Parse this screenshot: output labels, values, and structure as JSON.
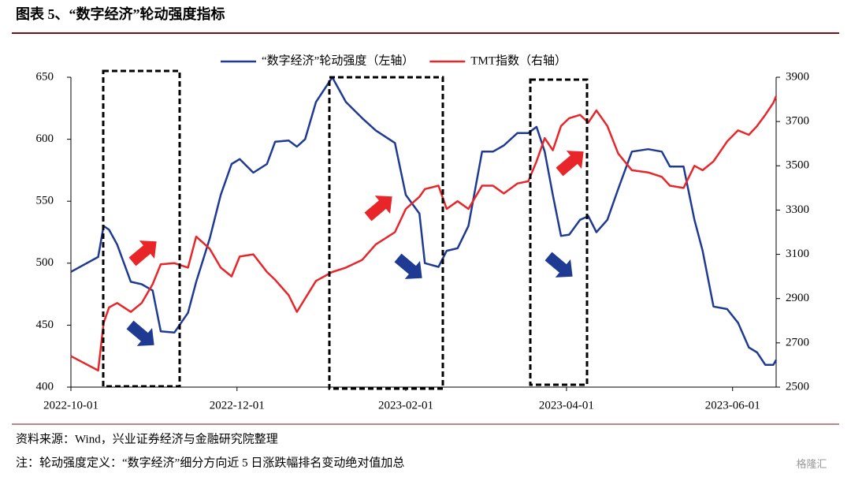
{
  "header": {
    "title": "图表 5、“数字经济”轮动强度指标"
  },
  "chart_data": {
    "type": "line",
    "x": [
      "2022-10-01",
      "2022-10-11",
      "2022-10-13",
      "2022-10-15",
      "2022-10-18",
      "2022-10-23",
      "2022-10-27",
      "2022-10-31",
      "2022-11-03",
      "2022-11-08",
      "2022-11-13",
      "2022-11-16",
      "2022-11-21",
      "2022-11-25",
      "2022-11-29",
      "2022-12-02",
      "2022-12-07",
      "2022-12-12",
      "2022-12-15",
      "2022-12-20",
      "2022-12-23",
      "2022-12-26",
      "2022-12-30",
      "2023-01-05",
      "2023-01-10",
      "2023-01-16",
      "2023-01-21",
      "2023-01-28",
      "2023-02-01",
      "2023-02-06",
      "2023-02-08",
      "2023-02-13",
      "2023-02-16",
      "2023-02-20",
      "2023-02-24",
      "2023-03-01",
      "2023-03-05",
      "2023-03-09",
      "2023-03-14",
      "2023-03-18",
      "2023-03-21",
      "2023-03-24",
      "2023-03-27",
      "2023-03-30",
      "2023-04-02",
      "2023-04-06",
      "2023-04-09",
      "2023-04-12",
      "2023-04-16",
      "2023-04-20",
      "2023-04-25",
      "2023-05-01",
      "2023-05-06",
      "2023-05-09",
      "2023-05-14",
      "2023-05-18",
      "2023-05-21",
      "2023-05-25",
      "2023-05-30",
      "2023-06-03",
      "2023-06-07",
      "2023-06-10",
      "2023-06-13",
      "2023-06-16",
      "2023-06-17"
    ],
    "series": [
      {
        "name": "“数字经济”轮动强度（左轴）",
        "color": "#1f3a93",
        "values": [
          493,
          505,
          530,
          527,
          515,
          485,
          483,
          478,
          445,
          444,
          460,
          485,
          520,
          555,
          580,
          584,
          573,
          580,
          598,
          599,
          594,
          600,
          630,
          650,
          630,
          617,
          607,
          597,
          555,
          540,
          500,
          497,
          510,
          512,
          530,
          590,
          590,
          595,
          605,
          605,
          610,
          590,
          555,
          522,
          523,
          535,
          538,
          525,
          535,
          560,
          590,
          592,
          590,
          578,
          578,
          535,
          510,
          465,
          463,
          452,
          432,
          428,
          418,
          418,
          422
        ]
      },
      {
        "name": "TMT指数（右轴）",
        "color": "#e8262a",
        "axis": "y2",
        "values": [
          2640,
          2575,
          2790,
          2860,
          2880,
          2840,
          2880,
          2965,
          3055,
          3060,
          3040,
          3180,
          3125,
          3040,
          3000,
          3090,
          3100,
          3020,
          2985,
          2915,
          2840,
          2900,
          2980,
          3020,
          3040,
          3075,
          3145,
          3200,
          3305,
          3360,
          3395,
          3410,
          3305,
          3340,
          3305,
          3410,
          3410,
          3375,
          3420,
          3430,
          3520,
          3625,
          3570,
          3680,
          3715,
          3730,
          3695,
          3750,
          3680,
          3555,
          3480,
          3470,
          3450,
          3410,
          3400,
          3500,
          3480,
          3520,
          3610,
          3660,
          3640,
          3680,
          3730,
          3785,
          3815
        ]
      }
    ],
    "xlim": [
      "2022-10-01",
      "2023-06-17"
    ],
    "xticks": [
      "2022-10-01",
      "2022-12-01",
      "2023-02-01",
      "2023-04-01",
      "2023-06-01"
    ],
    "ylim": [
      400,
      650
    ],
    "yticks": [
      400,
      450,
      500,
      550,
      600,
      650
    ],
    "y2lim": [
      2500,
      3900
    ],
    "y2ticks": [
      2500,
      2700,
      2900,
      3100,
      3300,
      3500,
      3700,
      3900
    ],
    "legend": "top"
  },
  "footer": {
    "source": "资料来源：Wind，兴业证券经济与金融研究院整理",
    "note": "注：轮动强度定义：“数字经济”细分方向近 5 日涨跌幅排名变动绝对值加总",
    "watermark": "格隆汇"
  }
}
